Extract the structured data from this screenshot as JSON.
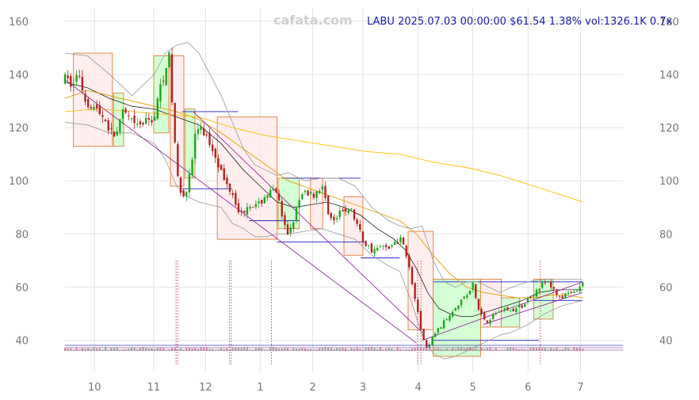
{
  "watermark": "cafata.com",
  "header": "LABU 2025.07.03 00:00:00 $61.54 1.38% vol:1326.1K 0.7x",
  "colors": {
    "up": "#1fa31f",
    "down": "#b22222",
    "ma_short": "#222222",
    "ma_long": "#ffc000",
    "ma_mid": "#e0a000",
    "band": "#999999",
    "trend": "#8b1a9b",
    "level": "#2020c0",
    "box_up_fill": "#ccffcc",
    "box_down_fill": "#ffe8e8",
    "box_stroke": "#e08a4a"
  },
  "chart_data": {
    "type": "candlestick",
    "ylim": [
      28,
      165
    ],
    "yticks": [
      40,
      60,
      80,
      100,
      120,
      140,
      160
    ],
    "x_range": [
      0,
      100
    ],
    "xticks": [
      {
        "label": "10",
        "x": 5.3
      },
      {
        "label": "11",
        "x": 15.9
      },
      {
        "label": "12",
        "x": 25.2
      },
      {
        "label": "1",
        "x": 35.0
      },
      {
        "label": "2",
        "x": 44.4
      },
      {
        "label": "3",
        "x": 53.4
      },
      {
        "label": "4",
        "x": 63.3
      },
      {
        "label": "5",
        "x": 73.1
      },
      {
        "label": "6",
        "x": 83.0
      },
      {
        "label": "7",
        "x": 92.4
      }
    ],
    "price_anchors": [
      [
        0,
        138
      ],
      [
        1.5,
        136
      ],
      [
        2.5,
        141
      ],
      [
        3.5,
        131
      ],
      [
        5,
        128
      ],
      [
        7,
        124
      ],
      [
        8.5,
        117
      ],
      [
        9.5,
        119
      ],
      [
        10.5,
        126
      ],
      [
        12.5,
        120
      ],
      [
        14.5,
        122
      ],
      [
        16,
        124
      ],
      [
        17,
        134
      ],
      [
        18,
        143
      ],
      [
        18.6,
        148
      ],
      [
        19.3,
        126
      ],
      [
        20.3,
        98
      ],
      [
        21.5,
        95
      ],
      [
        22.5,
        103
      ],
      [
        23.5,
        120
      ],
      [
        25,
        118
      ],
      [
        27,
        110
      ],
      [
        28.5,
        100
      ],
      [
        30,
        96
      ],
      [
        31.5,
        87
      ],
      [
        33,
        92
      ],
      [
        34.5,
        90
      ],
      [
        36,
        95
      ],
      [
        38,
        96
      ],
      [
        39,
        84
      ],
      [
        40,
        80
      ],
      [
        41,
        86
      ],
      [
        42,
        92
      ],
      [
        43,
        96
      ],
      [
        44.5,
        95
      ],
      [
        46,
        98
      ],
      [
        47,
        90
      ],
      [
        48,
        84
      ],
      [
        49.5,
        88
      ],
      [
        51,
        90
      ],
      [
        52.5,
        83
      ],
      [
        53.5,
        77
      ],
      [
        55,
        74
      ],
      [
        57,
        75
      ],
      [
        59,
        76
      ],
      [
        60.5,
        79
      ],
      [
        61.5,
        69
      ],
      [
        62.8,
        55
      ],
      [
        63.5,
        47
      ],
      [
        64.3,
        40
      ],
      [
        65,
        36
      ],
      [
        66,
        42
      ],
      [
        68,
        47
      ],
      [
        70,
        53
      ],
      [
        71.5,
        56
      ],
      [
        72.5,
        58
      ],
      [
        73,
        62
      ],
      [
        74,
        52
      ],
      [
        75.5,
        47
      ],
      [
        77,
        50
      ],
      [
        78.5,
        52
      ],
      [
        80,
        51
      ],
      [
        82,
        53
      ],
      [
        84,
        58
      ],
      [
        85.5,
        61
      ],
      [
        86.5,
        62
      ],
      [
        87.5,
        59
      ],
      [
        89,
        56
      ],
      [
        90,
        57
      ],
      [
        91.5,
        58
      ],
      [
        92.8,
        61
      ]
    ],
    "series": [
      {
        "name": "",
        "style": "ma_short",
        "points": [
          [
            0,
            137
          ],
          [
            4,
            135
          ],
          [
            8,
            131
          ],
          [
            12,
            128
          ],
          [
            16,
            127
          ],
          [
            20,
            124
          ],
          [
            24,
            121
          ],
          [
            28,
            114
          ],
          [
            32,
            104
          ],
          [
            35,
            98
          ],
          [
            38,
            92
          ],
          [
            41,
            90
          ],
          [
            44,
            91
          ],
          [
            47,
            92
          ],
          [
            50,
            90
          ],
          [
            53,
            87
          ],
          [
            56,
            82
          ],
          [
            59,
            78
          ],
          [
            61,
            74
          ],
          [
            63,
            67
          ],
          [
            65,
            58
          ],
          [
            67,
            52
          ],
          [
            69,
            50
          ],
          [
            71,
            49
          ],
          [
            73,
            49
          ],
          [
            76,
            51
          ],
          [
            79,
            53
          ],
          [
            82,
            55
          ],
          [
            85,
            58
          ],
          [
            88,
            59
          ],
          [
            90,
            59
          ],
          [
            92.8,
            59
          ]
        ]
      },
      {
        "name": "",
        "style": "ma_mid",
        "points": [
          [
            0,
            131
          ],
          [
            4,
            134
          ],
          [
            8,
            132
          ],
          [
            12,
            130
          ],
          [
            16,
            128
          ],
          [
            20,
            126
          ],
          [
            24,
            123
          ],
          [
            28,
            118
          ],
          [
            32,
            112
          ],
          [
            36,
            106
          ],
          [
            40,
            100
          ],
          [
            44,
            97
          ],
          [
            48,
            94
          ],
          [
            52,
            91
          ],
          [
            56,
            88
          ],
          [
            60,
            85
          ],
          [
            63,
            80
          ],
          [
            66,
            72
          ],
          [
            69,
            65
          ],
          [
            72,
            60
          ],
          [
            75,
            58
          ],
          [
            78,
            57
          ],
          [
            81,
            56
          ],
          [
            84,
            56
          ],
          [
            87,
            57
          ],
          [
            90,
            57
          ],
          [
            92.8,
            56
          ]
        ]
      },
      {
        "name": "",
        "style": "ma_long",
        "points": [
          [
            0,
            126
          ],
          [
            6,
            127
          ],
          [
            12,
            126
          ],
          [
            18,
            125
          ],
          [
            24,
            124
          ],
          [
            30,
            120
          ],
          [
            36,
            117
          ],
          [
            42,
            115
          ],
          [
            48,
            113
          ],
          [
            54,
            111
          ],
          [
            60,
            110
          ],
          [
            66,
            107
          ],
          [
            72,
            105
          ],
          [
            78,
            102
          ],
          [
            84,
            98
          ],
          [
            90,
            94
          ],
          [
            92.8,
            92
          ]
        ]
      },
      {
        "name": "",
        "style": "band",
        "points": [
          [
            0,
            148
          ],
          [
            4,
            147
          ],
          [
            8,
            140
          ],
          [
            12,
            132
          ],
          [
            16,
            140
          ],
          [
            18,
            148
          ],
          [
            20,
            151
          ],
          [
            22,
            152
          ],
          [
            24,
            148
          ],
          [
            26,
            140
          ],
          [
            28,
            132
          ],
          [
            30,
            122
          ],
          [
            32,
            112
          ],
          [
            34,
            106
          ],
          [
            36,
            104
          ],
          [
            38,
            102
          ],
          [
            40,
            103
          ],
          [
            43,
            100
          ],
          [
            46,
            101
          ],
          [
            49,
            101
          ],
          [
            52,
            98
          ],
          [
            55,
            90
          ],
          [
            58,
            85
          ],
          [
            60,
            83
          ],
          [
            62,
            82
          ],
          [
            64,
            83
          ],
          [
            66,
            70
          ],
          [
            68,
            62
          ],
          [
            70,
            60
          ],
          [
            72,
            62
          ],
          [
            74,
            62
          ],
          [
            76,
            60
          ],
          [
            78,
            58
          ],
          [
            80,
            60
          ],
          [
            83,
            62
          ],
          [
            86,
            63
          ],
          [
            89,
            63
          ],
          [
            92.8,
            63
          ]
        ]
      },
      {
        "name": "",
        "style": "band",
        "points": [
          [
            0,
            122
          ],
          [
            4,
            121
          ],
          [
            8,
            118
          ],
          [
            12,
            118
          ],
          [
            16,
            114
          ],
          [
            18,
            108
          ],
          [
            20,
            98
          ],
          [
            22,
            94
          ],
          [
            24,
            92
          ],
          [
            26,
            91
          ],
          [
            28,
            90
          ],
          [
            30,
            84
          ],
          [
            32,
            82
          ],
          [
            34,
            79
          ],
          [
            36,
            79
          ],
          [
            38,
            80
          ],
          [
            40,
            80
          ],
          [
            43,
            81
          ],
          [
            46,
            82
          ],
          [
            49,
            80
          ],
          [
            52,
            78
          ],
          [
            55,
            72
          ],
          [
            58,
            68
          ],
          [
            60,
            66
          ],
          [
            62,
            55
          ],
          [
            64,
            42
          ],
          [
            66,
            35
          ],
          [
            68,
            33
          ],
          [
            70,
            34
          ],
          [
            72,
            36
          ],
          [
            74,
            38
          ],
          [
            76,
            40
          ],
          [
            78,
            42
          ],
          [
            80,
            43
          ],
          [
            83,
            46
          ],
          [
            86,
            50
          ],
          [
            89,
            53
          ],
          [
            92.8,
            55
          ]
        ]
      }
    ],
    "trend_lines": [
      {
        "from": [
          0,
          138
        ],
        "to": [
          63,
          39
        ]
      },
      {
        "from": [
          23,
          126
        ],
        "to": [
          64,
          43
        ]
      },
      {
        "from": [
          64,
          40
        ],
        "to": [
          92.8,
          62
        ]
      },
      {
        "from": [
          75,
          46
        ],
        "to": [
          92.8,
          58
        ]
      }
    ],
    "level_lines": [
      {
        "y": 126,
        "x1": 21,
        "x2": 31
      },
      {
        "y": 97,
        "x1": 21,
        "x2": 30
      },
      {
        "y": 85,
        "x1": 33,
        "x2": 42
      },
      {
        "y": 101,
        "x1": 39,
        "x2": 53
      },
      {
        "y": 77,
        "x1": 38,
        "x2": 54
      },
      {
        "y": 71,
        "x1": 53,
        "x2": 60
      },
      {
        "y": 40,
        "x1": 66,
        "x2": 85
      },
      {
        "y": 62,
        "x1": 66,
        "x2": 92.8
      },
      {
        "y": 55,
        "x1": 84,
        "x2": 92.8
      }
    ],
    "boxes": [
      {
        "x1": 1.5,
        "x2": 8.5,
        "y1": 113,
        "y2": 148,
        "dir": "down"
      },
      {
        "x1": 8.7,
        "x2": 10.5,
        "y1": 113,
        "y2": 133,
        "dir": "up"
      },
      {
        "x1": 15.9,
        "x2": 18.6,
        "y1": 118,
        "y2": 147,
        "dir": "up"
      },
      {
        "x1": 18.9,
        "x2": 21.3,
        "y1": 98,
        "y2": 147,
        "dir": "down"
      },
      {
        "x1": 21.5,
        "x2": 23.3,
        "y1": 101,
        "y2": 127,
        "dir": "up"
      },
      {
        "x1": 27.3,
        "x2": 38.0,
        "y1": 78,
        "y2": 124,
        "dir": "down"
      },
      {
        "x1": 38.2,
        "x2": 42.0,
        "y1": 82,
        "y2": 101,
        "dir": "up"
      },
      {
        "x1": 44.0,
        "x2": 46.2,
        "y1": 82,
        "y2": 101,
        "dir": "down"
      },
      {
        "x1": 50.0,
        "x2": 53.4,
        "y1": 72,
        "y2": 94,
        "dir": "down"
      },
      {
        "x1": 61.5,
        "x2": 66.0,
        "y1": 44,
        "y2": 81,
        "dir": "down"
      },
      {
        "x1": 66.0,
        "x2": 74.5,
        "y1": 34,
        "y2": 63,
        "dir": "up"
      },
      {
        "x1": 74.5,
        "x2": 78.2,
        "y1": 45,
        "y2": 63,
        "dir": "down"
      },
      {
        "x1": 78.2,
        "x2": 81.5,
        "y1": 45,
        "y2": 56,
        "dir": "up"
      },
      {
        "x1": 84.0,
        "x2": 87.5,
        "y1": 48,
        "y2": 63,
        "dir": "up"
      }
    ],
    "marker_lines_x": [
      19.9,
      20.2,
      29.5,
      29.8,
      37.0,
      63.2,
      63.8,
      85.2
    ]
  }
}
